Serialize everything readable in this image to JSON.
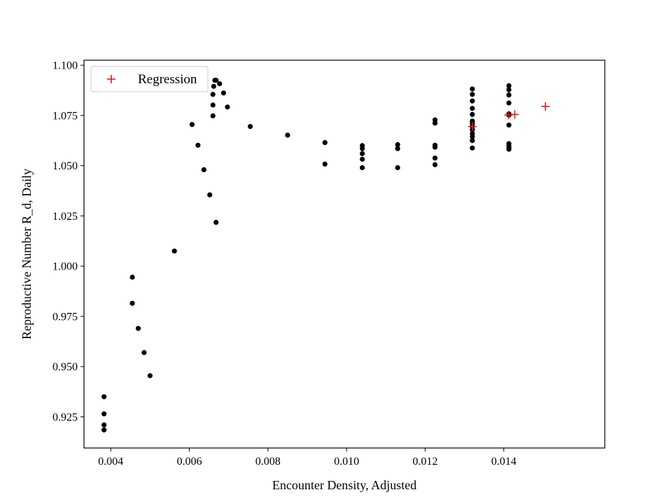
{
  "chart_data": {
    "type": "scatter",
    "xlabel": "Encounter Density, Adjusted",
    "ylabel": "Reproductive Number R_d, Daily",
    "xlim": [
      0.00332,
      0.01657
    ],
    "ylim": [
      0.9095,
      1.1025
    ],
    "x_ticks": [
      0.004,
      0.006,
      0.008,
      0.01,
      0.012,
      0.014
    ],
    "x_tick_labels": [
      "0.004",
      "0.006",
      "0.008",
      "0.010",
      "0.012",
      "0.014"
    ],
    "y_ticks": [
      0.925,
      0.95,
      0.975,
      1.0,
      1.025,
      1.05,
      1.075,
      1.1
    ],
    "y_tick_labels": [
      "0.925",
      "0.950",
      "0.975",
      "1.000",
      "1.025",
      "1.050",
      "1.075",
      "1.100"
    ],
    "grid": false,
    "legend_position": "top-left",
    "series": [
      {
        "marker": "dot",
        "color": "#000000",
        "points": [
          [
            0.00383,
            0.935
          ],
          [
            0.00383,
            0.9265
          ],
          [
            0.00383,
            0.921
          ],
          [
            0.00383,
            0.9185
          ],
          [
            0.00455,
            0.9945
          ],
          [
            0.00455,
            0.9815
          ],
          [
            0.0047,
            0.969
          ],
          [
            0.00485,
            0.957
          ],
          [
            0.005,
            0.9455
          ],
          [
            0.00562,
            1.0075
          ],
          [
            0.00607,
            1.0705
          ],
          [
            0.00622,
            1.0602
          ],
          [
            0.00637,
            1.048
          ],
          [
            0.00652,
            1.0355
          ],
          [
            0.0066,
            1.0748
          ],
          [
            0.0066,
            1.0802
          ],
          [
            0.0066,
            1.0855
          ],
          [
            0.00662,
            1.0895
          ],
          [
            0.00665,
            1.0925
          ],
          [
            0.00668,
            1.0925
          ],
          [
            0.00668,
            1.0218
          ],
          [
            0.00677,
            1.0908
          ],
          [
            0.00687,
            1.0862
          ],
          [
            0.00697,
            1.0792
          ],
          [
            0.00755,
            1.0695
          ],
          [
            0.0085,
            1.0652
          ],
          [
            0.00945,
            1.0615
          ],
          [
            0.00945,
            1.0508
          ],
          [
            0.0104,
            1.06
          ],
          [
            0.0104,
            1.0585
          ],
          [
            0.0104,
            1.056
          ],
          [
            0.0104,
            1.0532
          ],
          [
            0.0104,
            1.049
          ],
          [
            0.0113,
            1.0605
          ],
          [
            0.0113,
            1.0585
          ],
          [
            0.0113,
            1.049
          ],
          [
            0.01225,
            1.0728
          ],
          [
            0.01225,
            1.0712
          ],
          [
            0.01225,
            1.0602
          ],
          [
            0.01225,
            1.0592
          ],
          [
            0.01225,
            1.0538
          ],
          [
            0.01225,
            1.0505
          ],
          [
            0.0132,
            1.0882
          ],
          [
            0.0132,
            1.0855
          ],
          [
            0.0132,
            1.0822
          ],
          [
            0.0132,
            1.0785
          ],
          [
            0.0132,
            1.0755
          ],
          [
            0.0132,
            1.0722
          ],
          [
            0.0132,
            1.071
          ],
          [
            0.0132,
            1.0695
          ],
          [
            0.0132,
            1.068
          ],
          [
            0.0132,
            1.066
          ],
          [
            0.0132,
            1.0645
          ],
          [
            0.0132,
            1.0625
          ],
          [
            0.0132,
            1.0588
          ],
          [
            0.01413,
            1.0898
          ],
          [
            0.01413,
            1.0878
          ],
          [
            0.01413,
            1.0852
          ],
          [
            0.01413,
            1.0812
          ],
          [
            0.01413,
            1.0758
          ],
          [
            0.01413,
            1.0752
          ],
          [
            0.01413,
            1.0702
          ],
          [
            0.01413,
            1.061
          ],
          [
            0.01413,
            1.0598
          ],
          [
            0.01413,
            1.0588
          ],
          [
            0.01413,
            1.0582
          ]
        ]
      },
      {
        "name": "Regression",
        "marker": "plus",
        "color": "#e41a1c",
        "points": [
          [
            0.0132,
            1.0695
          ],
          [
            0.01412,
            1.0752
          ],
          [
            0.01428,
            1.0755
          ],
          [
            0.01506,
            1.0795
          ]
        ]
      }
    ]
  }
}
